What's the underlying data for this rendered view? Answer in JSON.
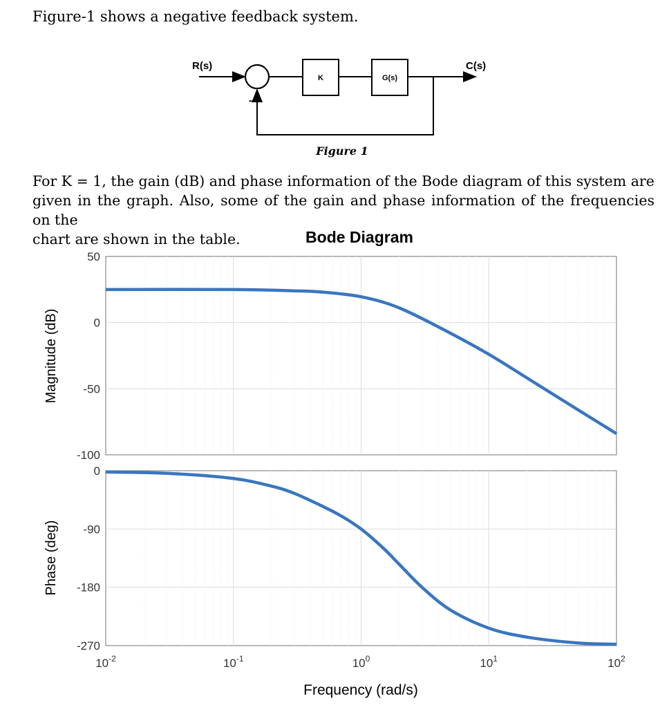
{
  "intro_text": "Figure-1 shows a negative feedback system.",
  "paragraph": {
    "line1": "For K = 1, the gain (dB) and phase information of the Bode diagram of this system are",
    "line2": "given in the graph. Also, some of the gain and phase information of the frequencies on the",
    "line3": "chart are shown in the table."
  },
  "block_diagram": {
    "input_label": "R(s)",
    "output_label": "C(s)",
    "gain_block": "K",
    "plant_block": "G(s)",
    "feedback_sign": "-",
    "caption": "Figure 1"
  },
  "chart_data": {
    "type": "line",
    "title": "Bode Diagram",
    "xlabel": "Frequency  (rad/s)",
    "x_scale": "log",
    "xlim": [
      0.01,
      100
    ],
    "x_ticks": [
      "10^-2",
      "10^-1",
      "10^0",
      "10^1",
      "10^2"
    ],
    "grid": true,
    "line_color": "#3a76bf",
    "magnitude": {
      "ylabel": "Magnitude (dB)",
      "ylim": [
        -100,
        50
      ],
      "y_ticks": [
        "50",
        "0",
        "-50",
        "-100"
      ],
      "x": [
        0.01,
        0.1,
        0.3,
        0.5,
        1,
        2,
        5,
        10,
        20,
        50,
        100
      ],
      "y": [
        25,
        25,
        24,
        23,
        19.5,
        11,
        -8,
        -24,
        -42,
        -66,
        -84
      ]
    },
    "phase": {
      "ylabel": "Phase (deg)",
      "ylim": [
        -270,
        0
      ],
      "y_ticks": [
        "0",
        "-90",
        "-180",
        "-270"
      ],
      "x": [
        0.01,
        0.03,
        0.1,
        0.2,
        0.3,
        0.5,
        0.7,
        1,
        1.5,
        2,
        3,
        5,
        10,
        20,
        50,
        100
      ],
      "y": [
        -2,
        -4,
        -12,
        -24,
        -35,
        -55,
        -70,
        -90,
        -120,
        -145,
        -180,
        -215,
        -243,
        -257,
        -266,
        -268
      ]
    }
  }
}
